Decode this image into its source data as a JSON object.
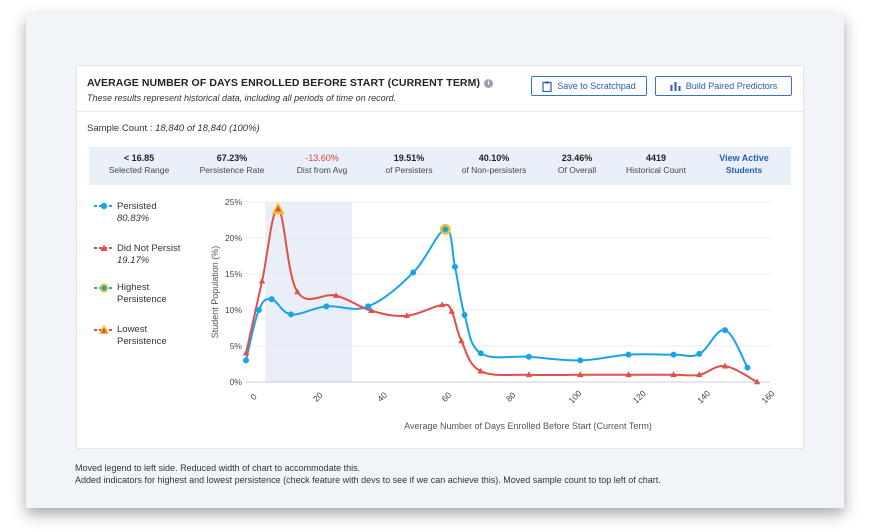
{
  "card": {
    "title": "AVERAGE NUMBER OF DAYS ENROLLED BEFORE START (CURRENT TERM)",
    "subtitle": "These results represent historical data, including all periods of time on record.",
    "save_button": "Save to Scratchpad",
    "paired_button": "Build Paired Predictors",
    "sample_label": "Sample Count :",
    "sample_value": "18,840 of 18,840 (100%)"
  },
  "stats": [
    {
      "value": "< 16.85",
      "label": "Selected Range"
    },
    {
      "value": "67.23%",
      "label": "Persistence Rate"
    },
    {
      "value": "-13.60%",
      "label": "Dist from Avg"
    },
    {
      "value": "19.51%",
      "label": "of Persisters"
    },
    {
      "value": "40.10%",
      "label": "of Non-persisters"
    },
    {
      "value": "23.46%",
      "label": "Of Overall"
    },
    {
      "value": "4419",
      "label": "Historical Count"
    },
    {
      "value": "View Active",
      "label": "Students"
    }
  ],
  "legend": {
    "persisted": {
      "name": "Persisted",
      "pct": "80.83%"
    },
    "did_not_persist": {
      "name": "Did Not Persist",
      "pct": "19.17%"
    },
    "highest": {
      "name_line1": "Highest",
      "name_line2": "Persistence"
    },
    "lowest": {
      "name_line1": "Lowest",
      "name_line2": "Persistence"
    }
  },
  "colors": {
    "persisted": "#1aa3e8",
    "did_not_persist": "#de5048",
    "highlight_marker": "#f2c029",
    "selection": "#e9eef8"
  },
  "notes": {
    "line1": "Moved legend to left side.  Reduced width of chart to accommodate this.",
    "line2": "Added indicators for highest and lowest persistence (check feature with devs to see if we can achieve this).  Moved sample count to top left of chart."
  },
  "chart_data": {
    "type": "line",
    "xlabel": "Average Number of Days Enrolled Before Start (Current Term)",
    "ylabel": "Student Population (%)",
    "xlim": [
      -3,
      160
    ],
    "ylim": [
      0,
      25
    ],
    "xticks": [
      0,
      20,
      40,
      60,
      80,
      100,
      120,
      140,
      160
    ],
    "yticks": [
      0,
      5,
      10,
      15,
      20,
      25
    ],
    "ytick_labels": [
      "0%",
      "5%",
      "10%",
      "15%",
      "20%",
      "25%"
    ],
    "selected_range": [
      3,
      30
    ],
    "highest_persistence": {
      "series": "Persisted",
      "x": 59,
      "y": 21.2
    },
    "lowest_persistence": {
      "series": "Did Not Persist",
      "x": 7,
      "y": 24.0
    },
    "series": [
      {
        "name": "Persisted",
        "x": [
          -3,
          1,
          5,
          11,
          22,
          35,
          49,
          59,
          62,
          65,
          70,
          85,
          101,
          116,
          130,
          138,
          146,
          153
        ],
        "y": [
          3.0,
          10.0,
          11.5,
          9.4,
          10.5,
          10.5,
          15.2,
          21.2,
          16.0,
          9.3,
          4.0,
          3.5,
          3.0,
          3.8,
          3.8,
          3.9,
          7.2,
          2.0
        ]
      },
      {
        "name": "Did Not Persist",
        "x": [
          -3,
          2,
          7,
          13,
          25,
          36,
          47,
          58,
          61,
          64,
          70,
          85,
          101,
          116,
          130,
          138,
          146,
          156
        ],
        "y": [
          4.0,
          14.0,
          24.0,
          12.5,
          12.0,
          9.9,
          9.2,
          10.7,
          9.8,
          5.7,
          1.5,
          1.0,
          1.0,
          1.0,
          1.0,
          1.0,
          2.2,
          0.0
        ]
      }
    ]
  }
}
